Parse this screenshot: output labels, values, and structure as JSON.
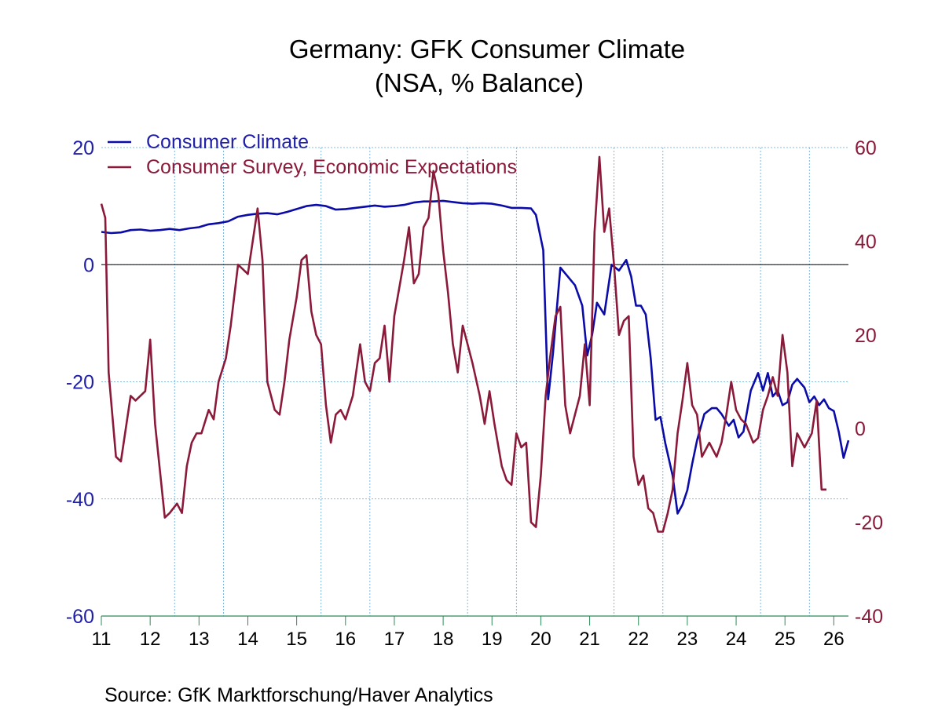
{
  "chart_data": {
    "type": "line",
    "title": "Germany: GFK Consumer Climate",
    "subtitle": "(NSA, % Balance)",
    "source": "Source:  GfK Marktforschung/Haver Analytics",
    "x_axis": {
      "range": [
        2011.0,
        2026.3
      ],
      "tick_labels": [
        "11",
        "12",
        "13",
        "14",
        "15",
        "16",
        "17",
        "18",
        "19",
        "20",
        "21",
        "22",
        "23",
        "24",
        "25",
        "26"
      ]
    },
    "y_left": {
      "range": [
        -60,
        20
      ],
      "tick_labels": [
        "20",
        "0",
        "-20",
        "-40",
        "-60"
      ],
      "tick_values": [
        20,
        0,
        -20,
        -40,
        -60
      ]
    },
    "y_right": {
      "range": [
        -40,
        60
      ],
      "tick_labels": [
        "60",
        "40",
        "20",
        "0",
        "-20",
        "-40"
      ],
      "tick_values": [
        60,
        40,
        20,
        0,
        -20,
        -40
      ]
    },
    "zero_line": true,
    "grid": true,
    "legend_position": "top-left",
    "colors": {
      "left_axis": "#1f1fa8",
      "right_axis": "#8b1a3a"
    },
    "series": [
      {
        "name": "Consumer Climate",
        "axis": "left",
        "color": "#0b0ba8",
        "points": [
          [
            2011.0,
            5.6
          ],
          [
            2011.2,
            5.4
          ],
          [
            2011.4,
            5.5
          ],
          [
            2011.6,
            5.9
          ],
          [
            2011.8,
            6.0
          ],
          [
            2012.0,
            5.8
          ],
          [
            2012.2,
            5.9
          ],
          [
            2012.4,
            6.1
          ],
          [
            2012.6,
            5.9
          ],
          [
            2012.8,
            6.2
          ],
          [
            2013.0,
            6.4
          ],
          [
            2013.2,
            6.9
          ],
          [
            2013.4,
            7.1
          ],
          [
            2013.6,
            7.4
          ],
          [
            2013.8,
            8.2
          ],
          [
            2014.0,
            8.5
          ],
          [
            2014.2,
            8.7
          ],
          [
            2014.4,
            8.8
          ],
          [
            2014.6,
            8.6
          ],
          [
            2014.8,
            9.0
          ],
          [
            2015.0,
            9.5
          ],
          [
            2015.2,
            10.0
          ],
          [
            2015.4,
            10.2
          ],
          [
            2015.6,
            10.0
          ],
          [
            2015.8,
            9.4
          ],
          [
            2016.0,
            9.5
          ],
          [
            2016.2,
            9.7
          ],
          [
            2016.4,
            9.9
          ],
          [
            2016.6,
            10.1
          ],
          [
            2016.8,
            9.9
          ],
          [
            2017.0,
            10.0
          ],
          [
            2017.2,
            10.2
          ],
          [
            2017.4,
            10.6
          ],
          [
            2017.6,
            10.8
          ],
          [
            2017.8,
            10.8
          ],
          [
            2018.0,
            10.9
          ],
          [
            2018.2,
            10.7
          ],
          [
            2018.4,
            10.5
          ],
          [
            2018.6,
            10.4
          ],
          [
            2018.8,
            10.5
          ],
          [
            2019.0,
            10.4
          ],
          [
            2019.2,
            10.1
          ],
          [
            2019.4,
            9.7
          ],
          [
            2019.6,
            9.7
          ],
          [
            2019.8,
            9.6
          ],
          [
            2019.9,
            8.5
          ],
          [
            2020.05,
            2.5
          ],
          [
            2020.15,
            -23.0
          ],
          [
            2020.25,
            -15.0
          ],
          [
            2020.4,
            -0.5
          ],
          [
            2020.55,
            -2.0
          ],
          [
            2020.7,
            -3.5
          ],
          [
            2020.85,
            -7.0
          ],
          [
            2020.95,
            -15.5
          ],
          [
            2021.05,
            -12.0
          ],
          [
            2021.15,
            -6.5
          ],
          [
            2021.3,
            -8.5
          ],
          [
            2021.45,
            0.0
          ],
          [
            2021.6,
            -1.0
          ],
          [
            2021.75,
            0.8
          ],
          [
            2021.85,
            -2.0
          ],
          [
            2021.95,
            -7.0
          ],
          [
            2022.05,
            -7.0
          ],
          [
            2022.15,
            -8.5
          ],
          [
            2022.25,
            -16.0
          ],
          [
            2022.35,
            -26.5
          ],
          [
            2022.45,
            -26.0
          ],
          [
            2022.55,
            -30.5
          ],
          [
            2022.7,
            -36.0
          ],
          [
            2022.8,
            -42.5
          ],
          [
            2022.9,
            -41.0
          ],
          [
            2023.0,
            -38.5
          ],
          [
            2023.1,
            -34.0
          ],
          [
            2023.2,
            -30.0
          ],
          [
            2023.35,
            -25.5
          ],
          [
            2023.5,
            -24.5
          ],
          [
            2023.6,
            -24.5
          ],
          [
            2023.7,
            -25.5
          ],
          [
            2023.85,
            -27.5
          ],
          [
            2023.95,
            -26.5
          ],
          [
            2024.05,
            -29.5
          ],
          [
            2024.15,
            -28.5
          ],
          [
            2024.3,
            -21.5
          ],
          [
            2024.45,
            -18.5
          ],
          [
            2024.55,
            -21.5
          ],
          [
            2024.65,
            -18.5
          ],
          [
            2024.75,
            -22.5
          ],
          [
            2024.85,
            -21.5
          ],
          [
            2024.95,
            -24.0
          ],
          [
            2025.05,
            -23.5
          ],
          [
            2025.15,
            -20.5
          ],
          [
            2025.25,
            -19.5
          ],
          [
            2025.4,
            -21.0
          ],
          [
            2025.5,
            -23.5
          ],
          [
            2025.6,
            -22.5
          ],
          [
            2025.7,
            -24.0
          ],
          [
            2025.8,
            -23.0
          ],
          [
            2025.9,
            -24.5
          ],
          [
            2026.0,
            -25.0
          ],
          [
            2026.1,
            -28.5
          ],
          [
            2026.2,
            -33.0
          ],
          [
            2026.3,
            -30.0
          ]
        ]
      },
      {
        "name": "Consumer Survey, Economic Expectations",
        "axis": "right",
        "color": "#8b1a3a",
        "points": [
          [
            2011.0,
            48
          ],
          [
            2011.08,
            45
          ],
          [
            2011.15,
            12
          ],
          [
            2011.3,
            -6
          ],
          [
            2011.4,
            -7
          ],
          [
            2011.5,
            0
          ],
          [
            2011.6,
            7
          ],
          [
            2011.7,
            6
          ],
          [
            2011.8,
            7
          ],
          [
            2011.9,
            8
          ],
          [
            2012.0,
            19
          ],
          [
            2012.1,
            1
          ],
          [
            2012.3,
            -19
          ],
          [
            2012.4,
            -18
          ],
          [
            2012.55,
            -16
          ],
          [
            2012.65,
            -18
          ],
          [
            2012.75,
            -8
          ],
          [
            2012.85,
            -3
          ],
          [
            2012.95,
            -1
          ],
          [
            2013.05,
            -1
          ],
          [
            2013.2,
            4
          ],
          [
            2013.3,
            2
          ],
          [
            2013.4,
            10
          ],
          [
            2013.55,
            15
          ],
          [
            2013.65,
            22
          ],
          [
            2013.8,
            35
          ],
          [
            2013.9,
            34
          ],
          [
            2014.0,
            33
          ],
          [
            2014.1,
            40
          ],
          [
            2014.2,
            47
          ],
          [
            2014.3,
            36
          ],
          [
            2014.4,
            10
          ],
          [
            2014.55,
            4
          ],
          [
            2014.65,
            3
          ],
          [
            2014.75,
            10
          ],
          [
            2014.85,
            19
          ],
          [
            2015.0,
            28
          ],
          [
            2015.1,
            36
          ],
          [
            2015.2,
            37
          ],
          [
            2015.3,
            25
          ],
          [
            2015.4,
            20
          ],
          [
            2015.5,
            18
          ],
          [
            2015.6,
            5
          ],
          [
            2015.7,
            -3
          ],
          [
            2015.8,
            3
          ],
          [
            2015.9,
            4
          ],
          [
            2016.0,
            2
          ],
          [
            2016.15,
            7
          ],
          [
            2016.3,
            18
          ],
          [
            2016.4,
            10
          ],
          [
            2016.5,
            8
          ],
          [
            2016.6,
            14
          ],
          [
            2016.7,
            15
          ],
          [
            2016.8,
            22
          ],
          [
            2016.9,
            10
          ],
          [
            2017.0,
            24
          ],
          [
            2017.1,
            30
          ],
          [
            2017.2,
            36
          ],
          [
            2017.3,
            43
          ],
          [
            2017.4,
            31
          ],
          [
            2017.5,
            33
          ],
          [
            2017.6,
            43
          ],
          [
            2017.7,
            45
          ],
          [
            2017.8,
            55
          ],
          [
            2017.9,
            50
          ],
          [
            2018.0,
            38
          ],
          [
            2018.1,
            29
          ],
          [
            2018.2,
            18
          ],
          [
            2018.3,
            12
          ],
          [
            2018.4,
            22
          ],
          [
            2018.5,
            18
          ],
          [
            2018.6,
            14
          ],
          [
            2018.75,
            7
          ],
          [
            2018.85,
            1
          ],
          [
            2018.95,
            8
          ],
          [
            2019.05,
            1
          ],
          [
            2019.2,
            -8
          ],
          [
            2019.3,
            -11
          ],
          [
            2019.4,
            -12
          ],
          [
            2019.5,
            -1
          ],
          [
            2019.6,
            -4
          ],
          [
            2019.7,
            -3
          ],
          [
            2019.8,
            -20
          ],
          [
            2019.9,
            -21
          ],
          [
            2020.0,
            -10
          ],
          [
            2020.1,
            7
          ],
          [
            2020.2,
            16
          ],
          [
            2020.3,
            24
          ],
          [
            2020.4,
            26
          ],
          [
            2020.5,
            5
          ],
          [
            2020.6,
            -1
          ],
          [
            2020.7,
            3
          ],
          [
            2020.8,
            7
          ],
          [
            2020.9,
            18
          ],
          [
            2021.0,
            5
          ],
          [
            2021.1,
            42
          ],
          [
            2021.2,
            58
          ],
          [
            2021.3,
            42
          ],
          [
            2021.4,
            47
          ],
          [
            2021.5,
            35
          ],
          [
            2021.6,
            20
          ],
          [
            2021.7,
            23
          ],
          [
            2021.8,
            24
          ],
          [
            2021.9,
            -6
          ],
          [
            2022.0,
            -12
          ],
          [
            2022.1,
            -10
          ],
          [
            2022.2,
            -17
          ],
          [
            2022.3,
            -18
          ],
          [
            2022.4,
            -22
          ],
          [
            2022.5,
            -22
          ],
          [
            2022.6,
            -18
          ],
          [
            2022.7,
            -13
          ],
          [
            2022.8,
            -1
          ],
          [
            2022.9,
            6
          ],
          [
            2023.0,
            14
          ],
          [
            2023.1,
            5
          ],
          [
            2023.2,
            3
          ],
          [
            2023.3,
            -6
          ],
          [
            2023.45,
            -3
          ],
          [
            2023.6,
            -6
          ],
          [
            2023.7,
            -3
          ],
          [
            2023.8,
            3
          ],
          [
            2023.9,
            10
          ],
          [
            2024.0,
            4
          ],
          [
            2024.1,
            2
          ],
          [
            2024.2,
            1
          ],
          [
            2024.35,
            -3
          ],
          [
            2024.45,
            -2
          ],
          [
            2024.55,
            4
          ],
          [
            2024.65,
            7
          ],
          [
            2024.75,
            11
          ],
          [
            2024.85,
            7
          ],
          [
            2024.95,
            20
          ],
          [
            2025.05,
            12
          ],
          [
            2025.15,
            -8
          ],
          [
            2025.25,
            -1
          ],
          [
            2025.4,
            -4
          ],
          [
            2025.55,
            -1
          ],
          [
            2025.65,
            6
          ],
          [
            2025.75,
            -13
          ],
          [
            2025.85,
            -13
          ]
        ]
      }
    ]
  }
}
